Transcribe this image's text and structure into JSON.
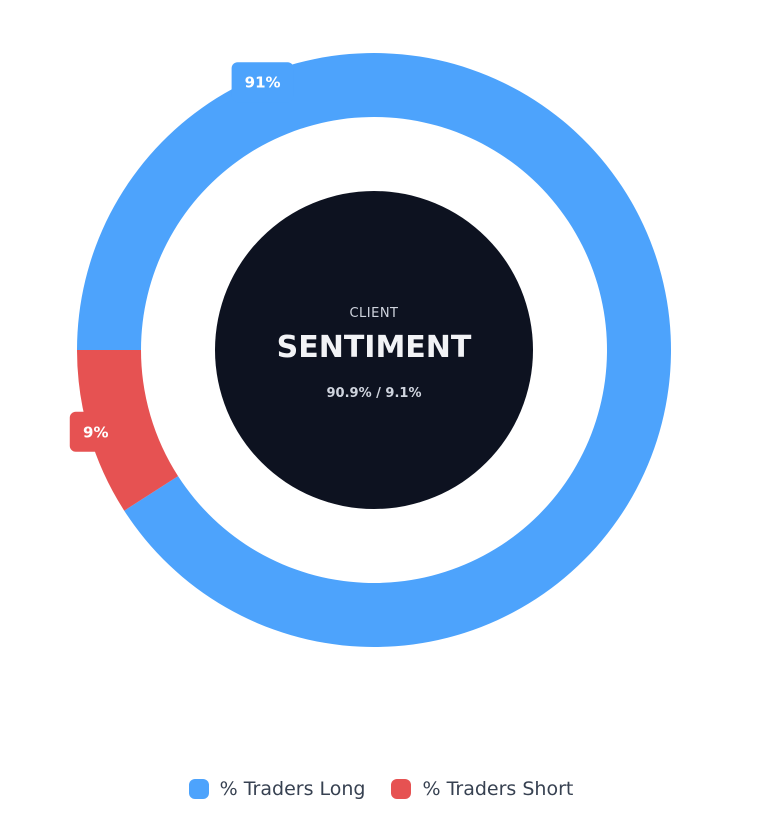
{
  "chart_data": {
    "type": "pie",
    "categories": [
      "% Traders Long",
      "% Traders Short"
    ],
    "values": [
      90.9,
      9.1
    ],
    "slice_labels": [
      "91%",
      "9%"
    ],
    "colors": [
      "#4da3fc",
      "#e65252"
    ],
    "center": {
      "eyebrow": "CLIENT",
      "title": "SENTIMENT",
      "subtitle": "90.9% / 9.1%",
      "background": "#0d1220"
    },
    "legend": {
      "position": "bottom",
      "items": [
        {
          "label": "% Traders Long",
          "color": "#4da3fc"
        },
        {
          "label": "% Traders Short",
          "color": "#e65252"
        }
      ]
    }
  }
}
